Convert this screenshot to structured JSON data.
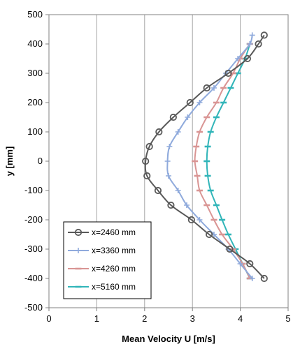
{
  "chart_data": {
    "type": "line",
    "title": "",
    "xlabel": "Mean Velocity U [m/s]",
    "ylabel": "y [mm]",
    "xlim": [
      0,
      5
    ],
    "ylim": [
      -500,
      500
    ],
    "x_ticks": [
      0,
      1,
      2,
      3,
      4,
      5
    ],
    "y_ticks": [
      -500,
      -400,
      -300,
      -200,
      -100,
      0,
      100,
      200,
      300,
      400,
      500
    ],
    "grid": "vertical-major",
    "legend_position": "bottom-left",
    "series": [
      {
        "name": "x=2460 mm",
        "color": "#595959",
        "marker": "circle",
        "points": [
          [
            4.5,
            430
          ],
          [
            4.38,
            400
          ],
          [
            4.15,
            350
          ],
          [
            3.75,
            300
          ],
          [
            3.3,
            250
          ],
          [
            2.95,
            200
          ],
          [
            2.6,
            150
          ],
          [
            2.3,
            100
          ],
          [
            2.1,
            50
          ],
          [
            2.02,
            0
          ],
          [
            2.05,
            -50
          ],
          [
            2.28,
            -100
          ],
          [
            2.55,
            -150
          ],
          [
            2.98,
            -200
          ],
          [
            3.35,
            -250
          ],
          [
            3.78,
            -300
          ],
          [
            4.2,
            -350
          ],
          [
            4.5,
            -400
          ]
        ]
      },
      {
        "name": "x=3360 mm",
        "color": "#8faadc",
        "marker": "plus",
        "points": [
          [
            4.25,
            430
          ],
          [
            4.2,
            400
          ],
          [
            3.95,
            350
          ],
          [
            3.7,
            300
          ],
          [
            3.45,
            250
          ],
          [
            3.15,
            200
          ],
          [
            2.9,
            150
          ],
          [
            2.7,
            100
          ],
          [
            2.52,
            50
          ],
          [
            2.48,
            0
          ],
          [
            2.5,
            -50
          ],
          [
            2.7,
            -100
          ],
          [
            2.88,
            -150
          ],
          [
            3.15,
            -200
          ],
          [
            3.45,
            -250
          ],
          [
            3.75,
            -300
          ],
          [
            4.0,
            -350
          ],
          [
            4.25,
            -400
          ]
        ]
      },
      {
        "name": "x=4260 mm",
        "color": "#d99594",
        "marker": "dash",
        "points": [
          [
            4.2,
            400
          ],
          [
            4.0,
            350
          ],
          [
            3.85,
            300
          ],
          [
            3.65,
            250
          ],
          [
            3.5,
            200
          ],
          [
            3.3,
            150
          ],
          [
            3.15,
            100
          ],
          [
            3.08,
            50
          ],
          [
            3.05,
            0
          ],
          [
            3.1,
            -50
          ],
          [
            3.15,
            -100
          ],
          [
            3.3,
            -150
          ],
          [
            3.45,
            -200
          ],
          [
            3.62,
            -250
          ],
          [
            3.85,
            -300
          ],
          [
            4.05,
            -350
          ],
          [
            4.2,
            -400
          ]
        ]
      },
      {
        "name": "x=5160 mm",
        "color": "#31b5b9",
        "marker": "dash",
        "points": [
          [
            4.2,
            400
          ],
          [
            4.1,
            350
          ],
          [
            3.95,
            300
          ],
          [
            3.8,
            250
          ],
          [
            3.65,
            200
          ],
          [
            3.5,
            150
          ],
          [
            3.38,
            100
          ],
          [
            3.32,
            50
          ],
          [
            3.3,
            0
          ],
          [
            3.32,
            -50
          ],
          [
            3.38,
            -100
          ],
          [
            3.5,
            -150
          ],
          [
            3.62,
            -200
          ],
          [
            3.75,
            -250
          ],
          [
            3.9,
            -300
          ],
          [
            4.05,
            -350
          ],
          [
            4.2,
            -400
          ]
        ]
      }
    ]
  }
}
